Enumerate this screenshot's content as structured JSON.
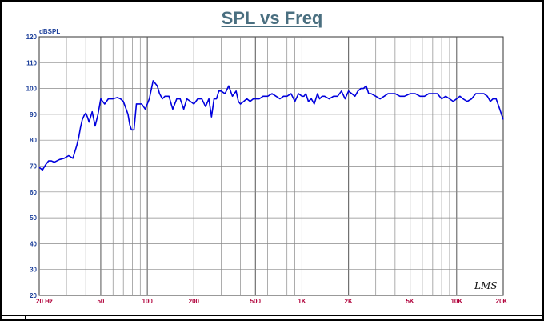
{
  "chart_data": {
    "type": "line",
    "title": "SPL vs Freq",
    "ylabel": "dBSPL",
    "xlabel": "",
    "x_scale": "log",
    "xlim": [
      20,
      20000
    ],
    "ylim": [
      20,
      120
    ],
    "yticks": [
      20,
      30,
      40,
      50,
      60,
      70,
      80,
      90,
      100,
      110,
      120
    ],
    "xticks": [
      {
        "value": 20,
        "label": "20 Hz"
      },
      {
        "value": 50,
        "label": "50"
      },
      {
        "value": 100,
        "label": "100"
      },
      {
        "value": 200,
        "label": "200"
      },
      {
        "value": 500,
        "label": "500"
      },
      {
        "value": 1000,
        "label": "1K"
      },
      {
        "value": 2000,
        "label": "2K"
      },
      {
        "value": 5000,
        "label": "5K"
      },
      {
        "value": 10000,
        "label": "10K"
      },
      {
        "value": 20000,
        "label": "20K"
      }
    ],
    "grid": true,
    "watermark": "LMS",
    "colors": {
      "line": "#0000dd",
      "grid_major": "#555555",
      "grid_minor": "#8a8a8a",
      "title": "#4a6f80",
      "ytick": "#1c3f9a",
      "xtick": "#b0003a"
    },
    "series": [
      {
        "name": "",
        "x": [
          20,
          21,
          22,
          23,
          24,
          25,
          27,
          29,
          31,
          33,
          35,
          36,
          37,
          38,
          39,
          40,
          41,
          42,
          44,
          46,
          48,
          50,
          53,
          56,
          60,
          64,
          67,
          70,
          73,
          75,
          77,
          79,
          82,
          85,
          88,
          92,
          97,
          103,
          109,
          116,
          120,
          125,
          130,
          138,
          146,
          155,
          163,
          172,
          180,
          190,
          200,
          212,
          225,
          238,
          250,
          260,
          270,
          280,
          290,
          300,
          318,
          336,
          355,
          375,
          388,
          400,
          420,
          440,
          462,
          485,
          500,
          530,
          560,
          600,
          640,
          680,
          720,
          760,
          800,
          850,
          900,
          950,
          1000,
          1030,
          1060,
          1100,
          1150,
          1200,
          1260,
          1300,
          1350,
          1400,
          1500,
          1600,
          1700,
          1800,
          1900,
          2000,
          2100,
          2200,
          2300,
          2400,
          2500,
          2600,
          2700,
          2800,
          3000,
          3200,
          3400,
          3600,
          3800,
          4000,
          4300,
          4600,
          5000,
          5400,
          5800,
          6200,
          6600,
          7000,
          7500,
          8000,
          8500,
          9000,
          9500,
          10000,
          10500,
          11000,
          11700,
          12500,
          13300,
          14000,
          15000,
          15800,
          16500,
          17200,
          18000,
          19000,
          20000
        ],
        "values": [
          69.5,
          68.5,
          70.5,
          72,
          72,
          71.5,
          72.5,
          73,
          74,
          73,
          78,
          81,
          85,
          88,
          89.5,
          90.5,
          89,
          87,
          91,
          85.5,
          90,
          96,
          94,
          96,
          96,
          96.5,
          96,
          95,
          92,
          90,
          86,
          84,
          84,
          94,
          94,
          94,
          92,
          96,
          103,
          101,
          98,
          96,
          97,
          97,
          92,
          96,
          96,
          92,
          96,
          95,
          94,
          96,
          96,
          93,
          96,
          89,
          96,
          96,
          99,
          99,
          98,
          101,
          97,
          99,
          95,
          94,
          95,
          96,
          95,
          96,
          96,
          96,
          97,
          97,
          98,
          97,
          96,
          97,
          97,
          98,
          95,
          98,
          97,
          97,
          98,
          95,
          96,
          94,
          98,
          96,
          97,
          97,
          96,
          97,
          97,
          99,
          96,
          99,
          98,
          97,
          99,
          100,
          100,
          101,
          98,
          98,
          97,
          96,
          97,
          98,
          98,
          98,
          97,
          97,
          98,
          98,
          97,
          97,
          98,
          98,
          98,
          96,
          97,
          96,
          95,
          96,
          97,
          96,
          95,
          96,
          98,
          98,
          98,
          97,
          95,
          96,
          96,
          92,
          88
        ]
      }
    ]
  }
}
